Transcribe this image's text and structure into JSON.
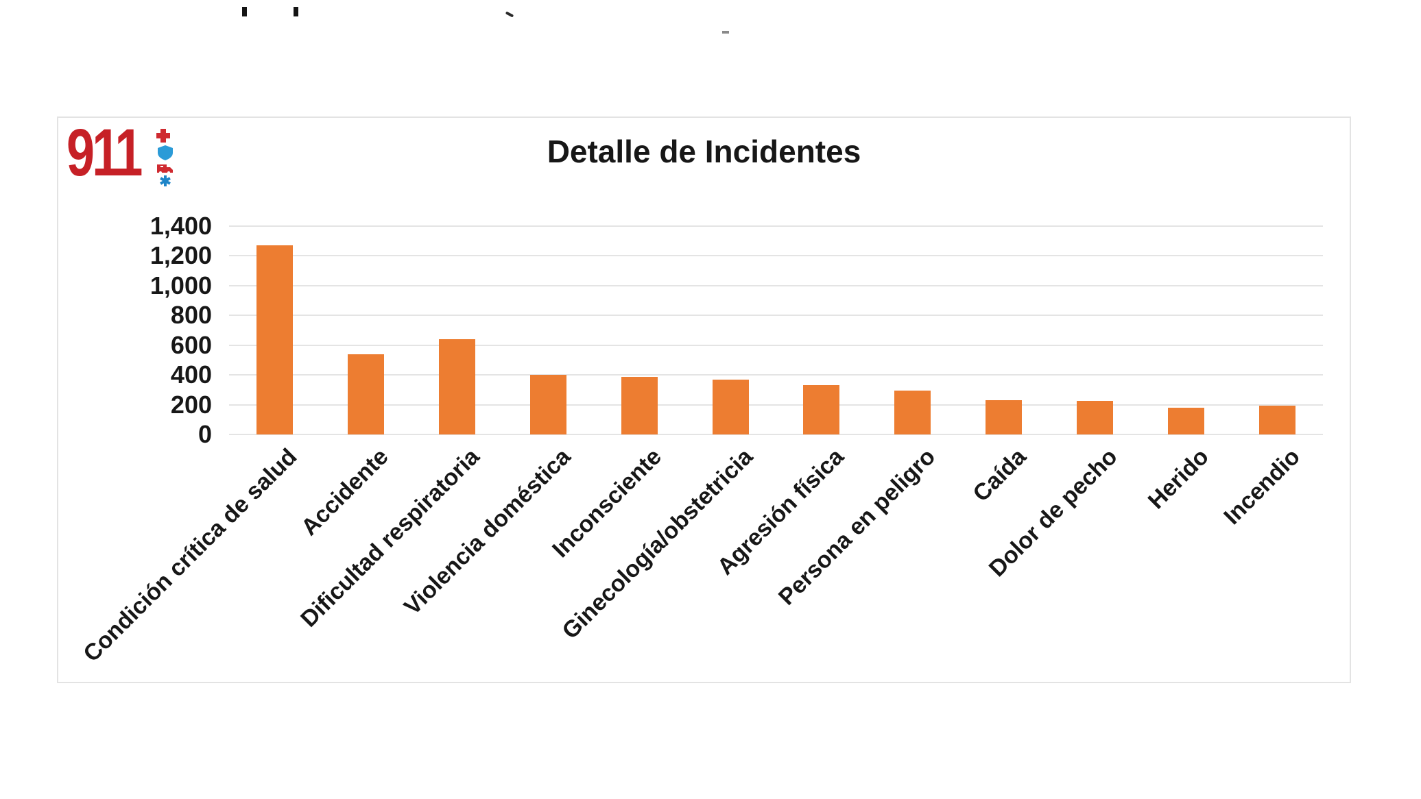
{
  "logo": {
    "text": "911",
    "color": "#c62026",
    "icons": [
      "cross-icon",
      "shield-icon",
      "ambulance-icon",
      "star-of-life-icon"
    ]
  },
  "chart_data": {
    "type": "bar",
    "title": "Detalle de Incidentes",
    "categories": [
      "Condición crítica de salud",
      "Accidente",
      "Dificultad respiratoria",
      "Violencia doméstica",
      "Inconsciente",
      "Ginecología/obstetricia",
      "Agresión física",
      "Persona en peligro",
      "Caída",
      "Dolor de pecho",
      "Herido",
      "Incendio"
    ],
    "values": [
      1270,
      540,
      640,
      400,
      385,
      370,
      330,
      295,
      230,
      225,
      180,
      195
    ],
    "bar_color": "#ED7D31",
    "xlabel": "",
    "ylabel": "",
    "ylim": [
      0,
      1400
    ],
    "ytick_step": 200,
    "ytick_labels": [
      "0",
      "200",
      "400",
      "600",
      "800",
      "1,000",
      "1,200",
      "1,400"
    ],
    "grid": "horizontal",
    "gridline_color": "#e4e4e4",
    "legend": "none",
    "x_tick_rotation": 45
  }
}
